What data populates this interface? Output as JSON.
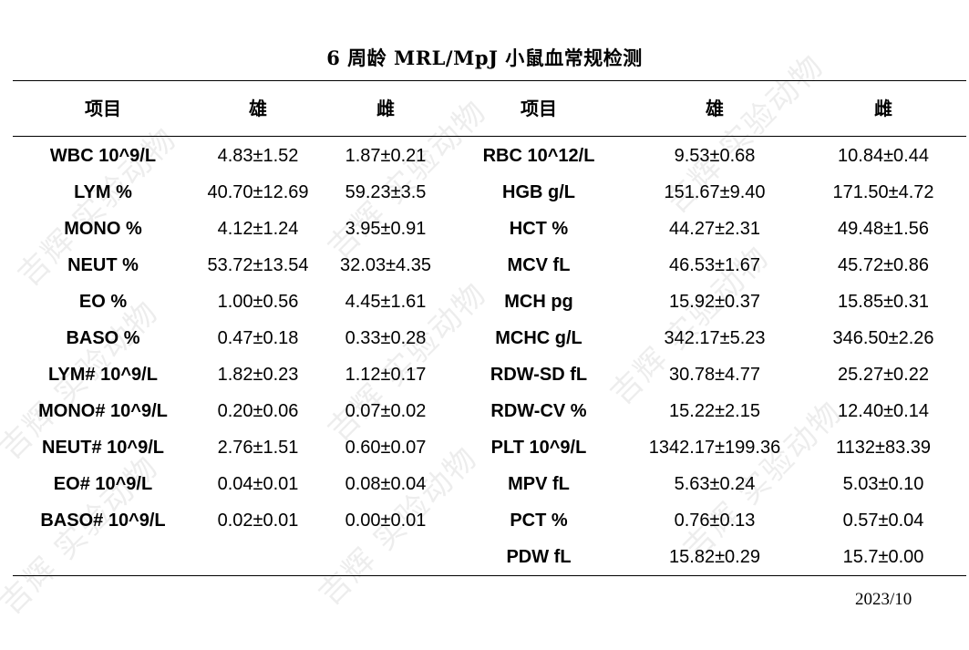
{
  "title": "6 周龄 MRL/MpJ 小鼠血常规检测",
  "headers": [
    "项目",
    "雄",
    "雌",
    "项目",
    "雄",
    "雌"
  ],
  "rows": [
    [
      "WBC 10^9/L",
      "4.83±1.52",
      "1.87±0.21",
      "RBC 10^12/L",
      "9.53±0.68",
      "10.84±0.44"
    ],
    [
      "LYM %",
      "40.70±12.69",
      "59.23±3.5",
      "HGB g/L",
      "151.67±9.40",
      "171.50±4.72"
    ],
    [
      "MONO %",
      "4.12±1.24",
      "3.95±0.91",
      "HCT %",
      "44.27±2.31",
      "49.48±1.56"
    ],
    [
      "NEUT %",
      "53.72±13.54",
      "32.03±4.35",
      "MCV fL",
      "46.53±1.67",
      "45.72±0.86"
    ],
    [
      "EO %",
      "1.00±0.56",
      "4.45±1.61",
      "MCH pg",
      "15.92±0.37",
      "15.85±0.31"
    ],
    [
      "BASO %",
      "0.47±0.18",
      "0.33±0.28",
      "MCHC g/L",
      "342.17±5.23",
      "346.50±2.26"
    ],
    [
      "LYM# 10^9/L",
      "1.82±0.23",
      "1.12±0.17",
      "RDW-SD fL",
      "30.78±4.77",
      "25.27±0.22"
    ],
    [
      "MONO# 10^9/L",
      "0.20±0.06",
      "0.07±0.02",
      "RDW-CV %",
      "15.22±2.15",
      "12.40±0.14"
    ],
    [
      "NEUT# 10^9/L",
      "2.76±1.51",
      "0.60±0.07",
      "PLT 10^9/L",
      "1342.17±199.36",
      "1132±83.39"
    ],
    [
      "EO# 10^9/L",
      "0.04±0.01",
      "0.08±0.04",
      "MPV fL",
      "5.63±0.24",
      "5.03±0.10"
    ],
    [
      "BASO# 10^9/L",
      "0.02±0.01",
      "0.00±0.01",
      "PCT %",
      "0.76±0.13",
      "0.57±0.04"
    ],
    [
      "",
      "",
      "",
      "PDW fL",
      "15.82±0.29",
      "15.7±0.00"
    ]
  ],
  "date": "2023/10",
  "watermark": "吉辉 实验动物"
}
